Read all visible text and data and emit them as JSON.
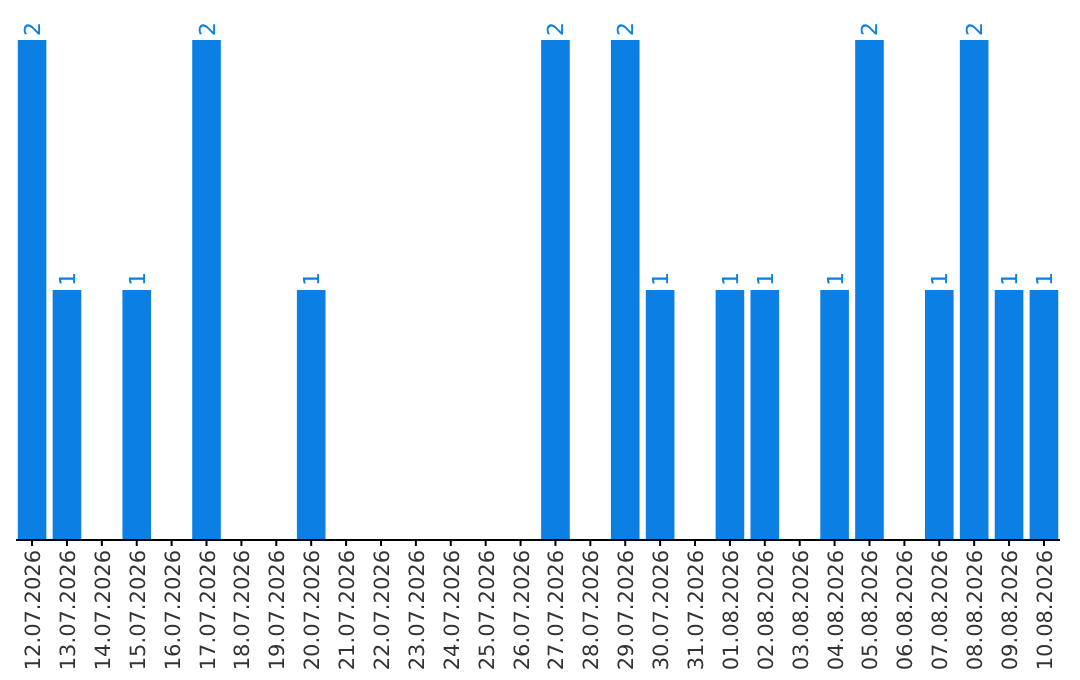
{
  "chart_data": {
    "type": "bar",
    "color": "#0b7fe3",
    "categories": [
      "12.07.2026",
      "13.07.2026",
      "14.07.2026",
      "15.07.2026",
      "16.07.2026",
      "17.07.2026",
      "18.07.2026",
      "19.07.2026",
      "20.07.2026",
      "21.07.2026",
      "22.07.2026",
      "23.07.2026",
      "24.07.2026",
      "25.07.2026",
      "26.07.2026",
      "27.07.2026",
      "28.07.2026",
      "29.07.2026",
      "30.07.2026",
      "31.07.2026",
      "01.08.2026",
      "02.08.2026",
      "03.08.2026",
      "04.08.2026",
      "05.08.2026",
      "06.08.2026",
      "07.08.2026",
      "08.08.2026",
      "09.08.2026",
      "10.08.2026"
    ],
    "values": [
      2,
      1,
      0,
      1,
      0,
      2,
      0,
      0,
      1,
      0,
      0,
      0,
      0,
      0,
      0,
      2,
      0,
      2,
      1,
      0,
      1,
      1,
      0,
      1,
      2,
      0,
      1,
      2,
      1,
      1
    ],
    "value_labels": [
      "2",
      "1",
      null,
      "1",
      null,
      "2",
      null,
      null,
      "1",
      null,
      null,
      null,
      null,
      null,
      null,
      "2",
      null,
      "2",
      "1",
      null,
      "1",
      "1",
      null,
      "1",
      "2",
      null,
      "1",
      "2",
      "1",
      "1"
    ]
  }
}
